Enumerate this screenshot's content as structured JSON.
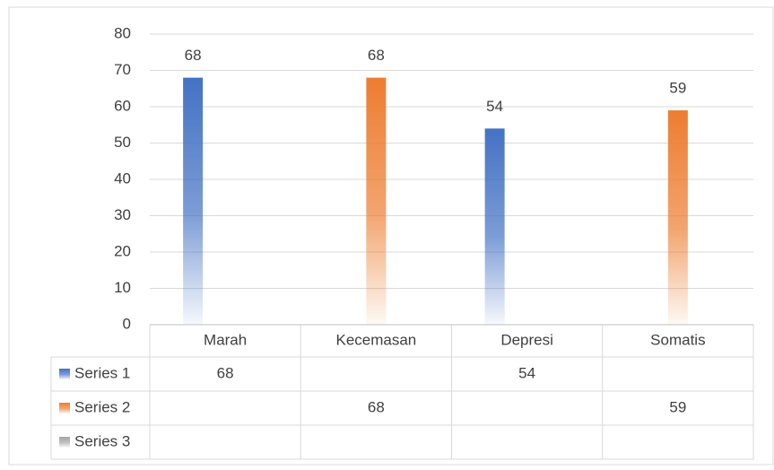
{
  "chart_data": {
    "type": "bar",
    "categories": [
      "Marah",
      "Kecemasan",
      "Depresi",
      "Somatis"
    ],
    "series": [
      {
        "name": "Series 1",
        "color": "#4472c4",
        "values": [
          68,
          null,
          54,
          null
        ]
      },
      {
        "name": "Series 2",
        "color": "#ed7d31",
        "values": [
          null,
          68,
          null,
          59
        ]
      },
      {
        "name": "Series 3",
        "color": "#a5a5a5",
        "values": [
          null,
          null,
          null,
          null
        ]
      }
    ],
    "ylim": [
      0,
      80
    ],
    "yticks": [
      0,
      10,
      20,
      30,
      40,
      50,
      60,
      70,
      80
    ],
    "grid": true,
    "data_table": true
  }
}
